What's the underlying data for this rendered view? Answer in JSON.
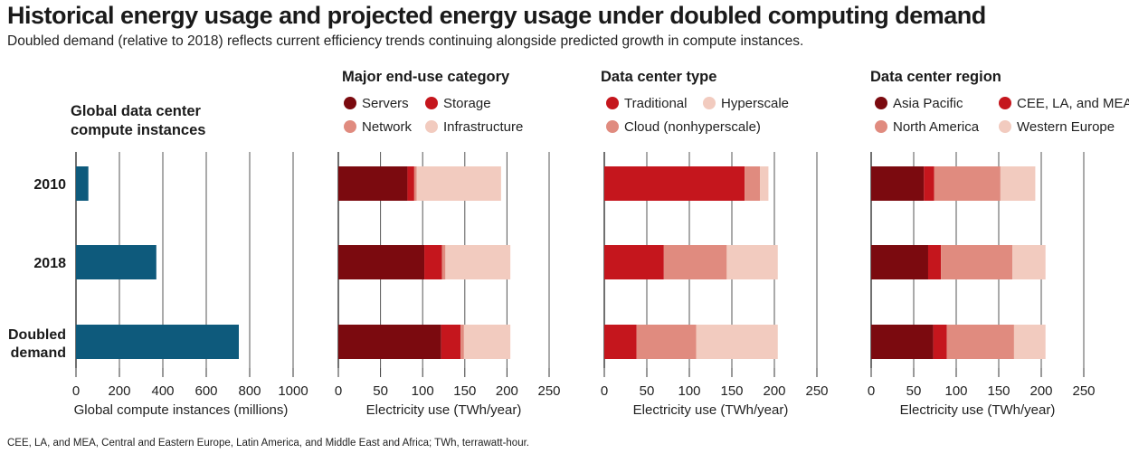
{
  "title": "Historical energy usage and projected energy usage under doubled computing demand",
  "subtitle": "Doubled demand (relative to 2018) reflects current efficiency trends continuing alongside predicted growth in compute instances.",
  "footnote": "CEE, LA, and MEA, Central and Eastern Europe, Latin America, and Middle East and Africa; TWh, terrawatt-hour.",
  "categories": [
    "2010",
    "2018",
    "Doubled demand"
  ],
  "chart_data": [
    {
      "type": "bar",
      "title": "Global data center compute instances",
      "xlabel": "Global compute instances (millions)",
      "xlim": [
        0,
        1000
      ],
      "ticks": [
        "0",
        "200",
        "400",
        "600",
        "800",
        "1000"
      ],
      "categories": [
        "2010",
        "2018",
        "Doubled demand"
      ],
      "series": [
        {
          "values": [
            57,
            370,
            750
          ],
          "color": "#0e5a7c"
        }
      ]
    },
    {
      "type": "bar",
      "stacked": true,
      "title": "Major end-use category",
      "xlabel": "Electricity use (TWh/year)",
      "xlim": [
        0,
        250
      ],
      "ticks": [
        "0",
        "50",
        "100",
        "150",
        "200",
        "250"
      ],
      "categories": [
        "2010",
        "2018",
        "Doubled demand"
      ],
      "series": [
        {
          "name": "Servers",
          "color": "#7b0a0f",
          "values": [
            82,
            102,
            122
          ]
        },
        {
          "name": "Storage",
          "color": "#c5161d",
          "values": [
            8,
            21,
            23
          ]
        },
        {
          "name": "Network",
          "color": "#e08b7f",
          "values": [
            3,
            4,
            4
          ]
        },
        {
          "name": "Infrastructure",
          "color": "#f2cbbf",
          "values": [
            100,
            77,
            55
          ]
        }
      ]
    },
    {
      "type": "bar",
      "stacked": true,
      "title": "Data center type",
      "xlabel": "Electricity use (TWh/year)",
      "xlim": [
        0,
        250
      ],
      "ticks": [
        "0",
        "50",
        "100",
        "150",
        "200",
        "250"
      ],
      "categories": [
        "2010",
        "2018",
        "Doubled demand"
      ],
      "series": [
        {
          "name": "Traditional",
          "color": "#c5161d",
          "values": [
            165,
            70,
            38
          ]
        },
        {
          "name": "Cloud (nonhyperscale)",
          "color": "#e08b7f",
          "values": [
            18,
            74,
            70
          ]
        },
        {
          "name": "Hyperscale",
          "color": "#f2cbbf",
          "values": [
            10,
            60,
            96
          ]
        }
      ]
    },
    {
      "type": "bar",
      "stacked": true,
      "title": "Data center region",
      "xlabel": "Electricity use (TWh/year)",
      "xlim": [
        0,
        250
      ],
      "ticks": [
        "0",
        "50",
        "100",
        "150",
        "200",
        "250"
      ],
      "categories": [
        "2010",
        "2018",
        "Doubled demand"
      ],
      "series": [
        {
          "name": "Asia Pacific",
          "color": "#7b0a0f",
          "values": [
            62,
            67,
            73
          ]
        },
        {
          "name": "CEE, LA, and MEA",
          "color": "#c5161d",
          "values": [
            12,
            15,
            16
          ]
        },
        {
          "name": "North America",
          "color": "#e08b7f",
          "values": [
            78,
            84,
            79
          ]
        },
        {
          "name": "Western Europe",
          "color": "#f2cbbf",
          "values": [
            41,
            39,
            37
          ]
        }
      ]
    }
  ],
  "legends": [
    null,
    [
      {
        "name": "Servers",
        "color": "#7b0a0f"
      },
      {
        "name": "Storage",
        "color": "#c5161d"
      },
      {
        "name": "Network",
        "color": "#e08b7f"
      },
      {
        "name": "Infrastructure",
        "color": "#f2cbbf"
      }
    ],
    [
      {
        "name": "Traditional",
        "color": "#c5161d"
      },
      {
        "name": "Hyperscale",
        "color": "#f2cbbf"
      },
      {
        "name": "Cloud (nonhyperscale)",
        "color": "#e08b7f"
      }
    ],
    [
      {
        "name": "Asia Pacific",
        "color": "#7b0a0f"
      },
      {
        "name": "CEE, LA, and MEA",
        "color": "#c5161d"
      },
      {
        "name": "North America",
        "color": "#e08b7f"
      },
      {
        "name": "Western Europe",
        "color": "#f2cbbf"
      }
    ]
  ]
}
